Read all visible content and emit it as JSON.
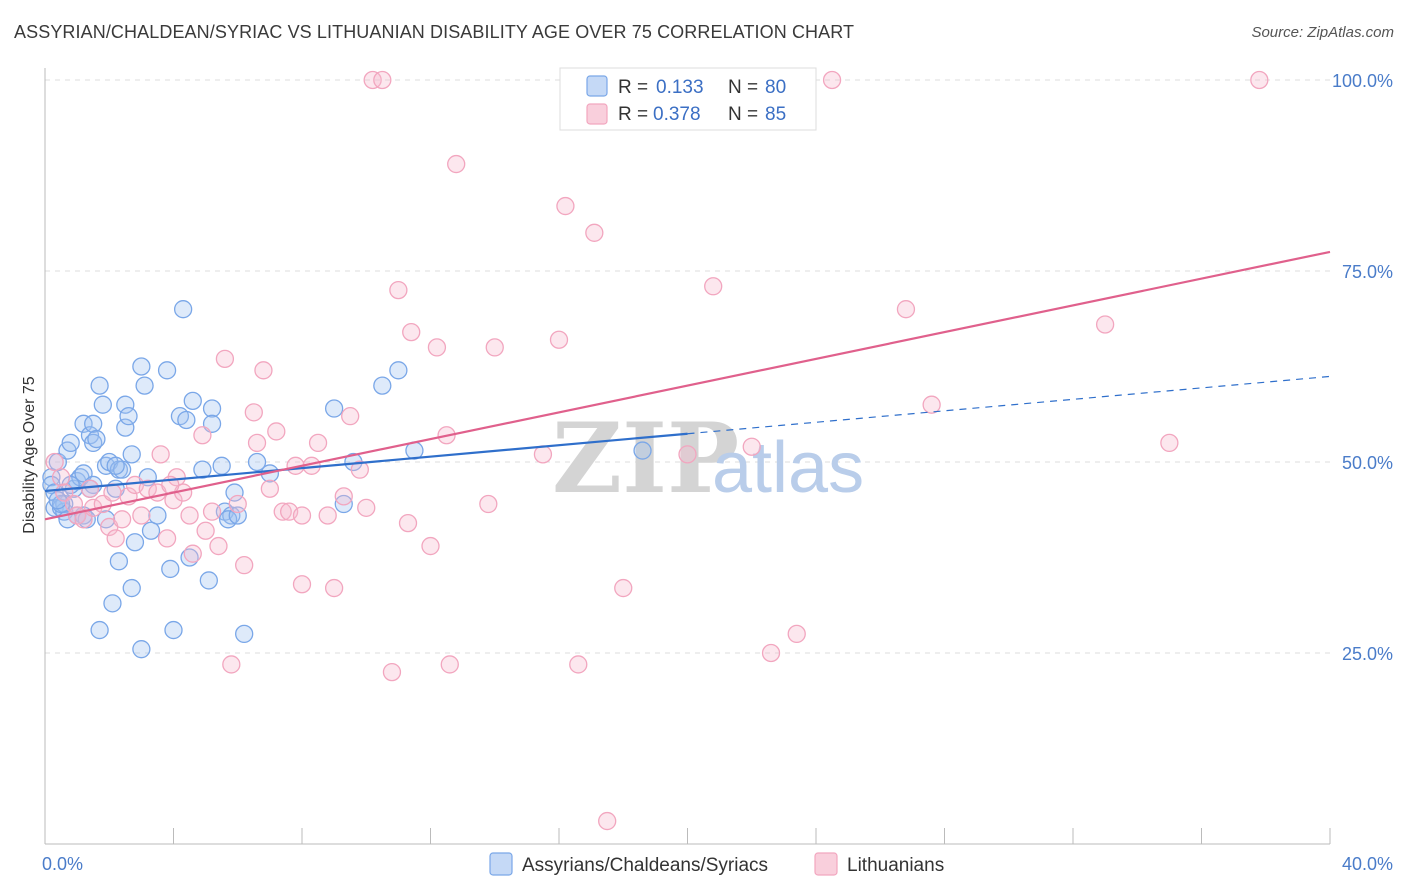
{
  "title": "ASSYRIAN/CHALDEAN/SYRIAC VS LITHUANIAN DISABILITY AGE OVER 75 CORRELATION CHART",
  "source": "Source: ZipAtlas.com",
  "watermark": {
    "zip": "ZIP",
    "atlas": "atlas"
  },
  "chart_data": {
    "type": "scatter",
    "xlabel": "",
    "ylabel": "Disability Age Over 75",
    "xlim": [
      0,
      40
    ],
    "ylim": [
      0,
      102
    ],
    "x_tick_labels": [
      {
        "value": 0,
        "label": "0.0%"
      },
      {
        "value": 40,
        "label": "40.0%"
      }
    ],
    "y_tick_labels": [
      {
        "value": 25,
        "label": "25.0%"
      },
      {
        "value": 50,
        "label": "50.0%"
      },
      {
        "value": 75,
        "label": "75.0%"
      },
      {
        "value": 100,
        "label": "100.0%"
      }
    ],
    "grid": true,
    "legend": {
      "placement": "top-center",
      "entries": [
        {
          "r_label": "R =",
          "r_value": "0.133",
          "n_label": "N =",
          "n_value": "80",
          "color": "#7aa7e8"
        },
        {
          "r_label": "R =",
          "r_value": "0.378",
          "n_label": "N =",
          "n_value": "85",
          "color": "#f2a6bf"
        }
      ]
    },
    "series": [
      {
        "name": "Assyrians/Chaldeans/Syriacs",
        "color": "#7aa7e8",
        "trend_color": "#2f6fcb",
        "trend": {
          "x0": 0,
          "y0": 46.2,
          "x1": 20,
          "y1": 53.7,
          "dash_x1": 40,
          "dash_y1": 61.2
        },
        "points": [
          [
            0.2,
            48.0
          ],
          [
            0.2,
            47.0
          ],
          [
            0.3,
            44.0
          ],
          [
            0.3,
            46.0
          ],
          [
            0.4,
            50.0
          ],
          [
            0.5,
            44.0
          ],
          [
            0.6,
            43.5
          ],
          [
            0.6,
            44.5
          ],
          [
            0.7,
            42.5
          ],
          [
            0.7,
            51.5
          ],
          [
            0.8,
            52.5
          ],
          [
            0.9,
            46.5
          ],
          [
            1.0,
            47.5
          ],
          [
            1.1,
            48.0
          ],
          [
            1.2,
            43.0
          ],
          [
            1.2,
            48.5
          ],
          [
            1.2,
            55.0
          ],
          [
            1.3,
            42.5
          ],
          [
            1.4,
            53.5
          ],
          [
            1.5,
            47.0
          ],
          [
            1.5,
            55.0
          ],
          [
            1.5,
            52.5
          ],
          [
            1.6,
            53.0
          ],
          [
            1.7,
            28.0
          ],
          [
            1.7,
            60.0
          ],
          [
            1.8,
            57.5
          ],
          [
            1.9,
            49.5
          ],
          [
            2.0,
            50.0
          ],
          [
            2.1,
            31.5
          ],
          [
            2.2,
            46.5
          ],
          [
            2.3,
            49.0
          ],
          [
            2.4,
            49.0
          ],
          [
            2.3,
            37.0
          ],
          [
            2.5,
            57.5
          ],
          [
            2.5,
            54.5
          ],
          [
            2.6,
            56.0
          ],
          [
            2.7,
            51.0
          ],
          [
            2.7,
            33.5
          ],
          [
            2.8,
            39.5
          ],
          [
            3.0,
            62.5
          ],
          [
            3.1,
            60.0
          ],
          [
            3.2,
            48.0
          ],
          [
            3.3,
            41.0
          ],
          [
            3.0,
            25.5
          ],
          [
            3.5,
            43.0
          ],
          [
            3.8,
            62.0
          ],
          [
            3.9,
            36.0
          ],
          [
            4.0,
            28.0
          ],
          [
            4.2,
            56.0
          ],
          [
            4.3,
            70.0
          ],
          [
            4.4,
            55.5
          ],
          [
            4.5,
            37.5
          ],
          [
            4.6,
            58.0
          ],
          [
            4.9,
            49.0
          ],
          [
            5.1,
            34.5
          ],
          [
            5.2,
            57.0
          ],
          [
            5.2,
            55.0
          ],
          [
            5.5,
            49.5
          ],
          [
            5.6,
            43.5
          ],
          [
            5.8,
            43.0
          ],
          [
            5.7,
            42.5
          ],
          [
            5.9,
            46.0
          ],
          [
            6.0,
            43.0
          ],
          [
            6.2,
            27.5
          ],
          [
            6.6,
            50.0
          ],
          [
            7.0,
            48.5
          ],
          [
            9.0,
            57.0
          ],
          [
            9.3,
            44.5
          ],
          [
            9.6,
            50.0
          ],
          [
            10.5,
            60.0
          ],
          [
            11.0,
            62.0
          ],
          [
            11.5,
            51.5
          ],
          [
            18.6,
            51.5
          ],
          [
            1.0,
            43.0
          ],
          [
            0.5,
            44.5
          ],
          [
            0.8,
            47.0
          ],
          [
            1.9,
            42.5
          ],
          [
            2.2,
            49.5
          ],
          [
            1.4,
            46.5
          ],
          [
            0.4,
            45.0
          ]
        ]
      },
      {
        "name": "Lithuanians",
        "color": "#f2a6bf",
        "trend_color": "#e0608c",
        "trend": {
          "x0": 0,
          "y0": 42.5,
          "x1": 40,
          "y1": 77.5
        },
        "points": [
          [
            0.3,
            50.0
          ],
          [
            0.5,
            48.0
          ],
          [
            0.6,
            46.0
          ],
          [
            0.9,
            44.5
          ],
          [
            1.0,
            43.0
          ],
          [
            1.2,
            42.5
          ],
          [
            1.4,
            46.5
          ],
          [
            1.5,
            44.0
          ],
          [
            1.8,
            44.5
          ],
          [
            2.0,
            41.5
          ],
          [
            2.2,
            40.0
          ],
          [
            2.4,
            42.5
          ],
          [
            2.6,
            45.5
          ],
          [
            2.8,
            47.0
          ],
          [
            3.0,
            43.0
          ],
          [
            3.2,
            46.5
          ],
          [
            3.5,
            46.0
          ],
          [
            3.6,
            51.0
          ],
          [
            3.8,
            40.0
          ],
          [
            4.0,
            45.0
          ],
          [
            4.1,
            48.0
          ],
          [
            4.3,
            46.0
          ],
          [
            4.5,
            43.0
          ],
          [
            4.6,
            38.0
          ],
          [
            4.9,
            53.5
          ],
          [
            5.0,
            41.0
          ],
          [
            5.2,
            43.5
          ],
          [
            5.4,
            39.0
          ],
          [
            5.6,
            63.5
          ],
          [
            5.8,
            23.5
          ],
          [
            6.0,
            44.5
          ],
          [
            6.2,
            36.5
          ],
          [
            6.5,
            56.5
          ],
          [
            6.6,
            52.5
          ],
          [
            6.8,
            62.0
          ],
          [
            7.0,
            46.5
          ],
          [
            7.2,
            54.0
          ],
          [
            7.4,
            43.5
          ],
          [
            7.6,
            43.5
          ],
          [
            7.8,
            49.5
          ],
          [
            8.0,
            34.0
          ],
          [
            8.0,
            43.0
          ],
          [
            8.3,
            49.5
          ],
          [
            8.5,
            52.5
          ],
          [
            8.8,
            43.0
          ],
          [
            9.0,
            33.5
          ],
          [
            9.3,
            45.5
          ],
          [
            9.5,
            56.0
          ],
          [
            9.8,
            49.0
          ],
          [
            10.0,
            44.0
          ],
          [
            10.2,
            100.0
          ],
          [
            10.5,
            100.0
          ],
          [
            10.8,
            22.5
          ],
          [
            11.0,
            72.5
          ],
          [
            11.3,
            42.0
          ],
          [
            11.4,
            67.0
          ],
          [
            12.0,
            39.0
          ],
          [
            12.2,
            65.0
          ],
          [
            12.5,
            53.5
          ],
          [
            12.6,
            23.5
          ],
          [
            12.8,
            89.0
          ],
          [
            13.8,
            44.5
          ],
          [
            14.0,
            65.0
          ],
          [
            15.5,
            51.0
          ],
          [
            16.0,
            66.0
          ],
          [
            16.2,
            83.5
          ],
          [
            16.6,
            23.5
          ],
          [
            17.1,
            80.0
          ],
          [
            18.0,
            33.5
          ],
          [
            19.2,
            100.0
          ],
          [
            20.0,
            51.0
          ],
          [
            20.8,
            73.0
          ],
          [
            21.3,
            100.0
          ],
          [
            22.0,
            52.0
          ],
          [
            22.6,
            25.0
          ],
          [
            23.4,
            27.5
          ],
          [
            24.5,
            100.0
          ],
          [
            26.8,
            70.0
          ],
          [
            27.6,
            57.5
          ],
          [
            33.0,
            68.0
          ],
          [
            35.0,
            52.5
          ],
          [
            37.8,
            100.0
          ],
          [
            17.5,
            3.0
          ],
          [
            3.9,
            47.0
          ],
          [
            2.1,
            46.0
          ]
        ]
      }
    ]
  }
}
